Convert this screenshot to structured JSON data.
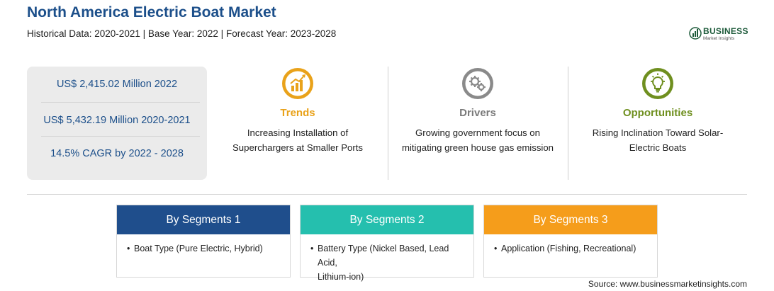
{
  "header": {
    "title": "North America Electric Boat Market",
    "subtitle": "Historical Data: 2020-2021 | Base Year: 2022 | Forecast Year: 2023-2028"
  },
  "logo": {
    "name": "BUSINESS",
    "tagline": "Market Insights"
  },
  "stats": [
    "US$ 2,415.02 Million 2022",
    "US$ 5,432.19 Million 2020-2021",
    "14.5% CAGR by 2022 - 2028"
  ],
  "columns": {
    "trends": {
      "label": "Trends",
      "desc_line1": "Increasing Installation of",
      "desc_line2": "Superchargers at Smaller Ports",
      "icon": "bar-chart-growth-icon",
      "color": "#e9a21a"
    },
    "drivers": {
      "label": "Drivers",
      "desc_line1": "Growing government focus on",
      "desc_line2": "mitigating green house gas emission",
      "icon": "gears-icon",
      "color": "#7a7a7a"
    },
    "opportunities": {
      "label": "Opportunities",
      "desc_line1": "Rising Inclination Toward Solar-",
      "desc_line2": "Electric Boats",
      "icon": "light-bulb-icon",
      "color": "#6f8f1f"
    }
  },
  "segments": [
    {
      "title": "By Segments 1",
      "bullet": "•",
      "line1": "Boat Type (Pure Electric, Hybrid)",
      "line2": "",
      "color": "#1f4e8c"
    },
    {
      "title": "By Segments 2",
      "bullet": "•",
      "line1": "Battery Type (Nickel Based, Lead Acid,",
      "line2": "Lithium-ion)",
      "color": "#25bfae"
    },
    {
      "title": "By Segments 3",
      "bullet": "•",
      "line1": "Application (Fishing, Recreational)",
      "line2": "",
      "color": "#f59d1b"
    }
  ],
  "footer": {
    "source": "Source: www.businessmarketinsights.com"
  }
}
